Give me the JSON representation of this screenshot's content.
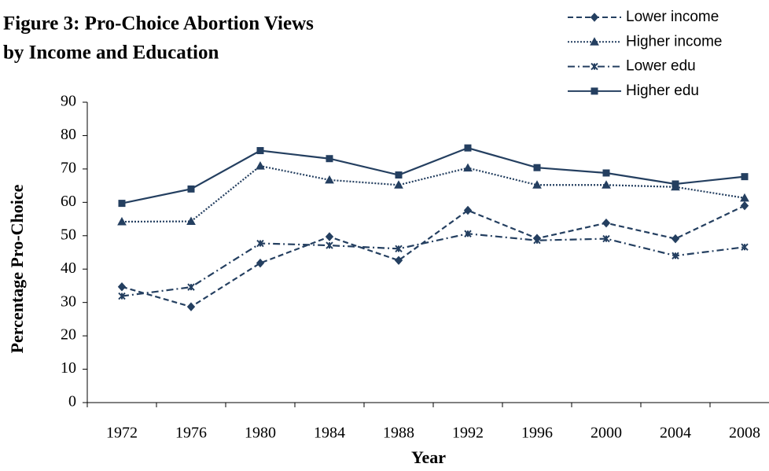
{
  "chart_data": {
    "type": "line",
    "title": [
      "Figure 3:  Pro-Choice Abortion Views",
      "by Income and Education"
    ],
    "x_label": "Year",
    "y_label": "Percentage Pro-Choice",
    "categories": [
      "1972",
      "1976",
      "1980",
      "1984",
      "1988",
      "1992",
      "1996",
      "2000",
      "2004",
      "2008"
    ],
    "ylim": [
      0,
      90
    ],
    "yticks": [
      0,
      10,
      20,
      30,
      40,
      50,
      60,
      70,
      80,
      90
    ],
    "legend": "top-right",
    "series": [
      {
        "name": "Lower income",
        "color": "#243f60",
        "dash": "dashed",
        "marker": "diamond",
        "values": [
          34.7,
          28.7,
          41.8,
          49.7,
          42.6,
          57.6,
          49.2,
          53.8,
          49.1,
          59.0
        ]
      },
      {
        "name": "Higher income",
        "color": "#243f60",
        "dash": "dotted",
        "marker": "triangle",
        "values": [
          54.2,
          54.3,
          70.9,
          66.7,
          65.2,
          70.3,
          65.2,
          65.2,
          64.6,
          61.3
        ]
      },
      {
        "name": "Lower edu",
        "color": "#243f60",
        "dash": "dashdot",
        "marker": "star",
        "values": [
          31.9,
          34.6,
          47.7,
          47.1,
          46.1,
          50.6,
          48.6,
          49.1,
          44.0,
          46.6
        ]
      },
      {
        "name": "Higher edu",
        "color": "#243f60",
        "dash": "solid",
        "marker": "square",
        "values": [
          59.7,
          64.0,
          75.5,
          73.1,
          68.2,
          76.3,
          70.4,
          68.8,
          65.5,
          67.7
        ]
      }
    ]
  }
}
